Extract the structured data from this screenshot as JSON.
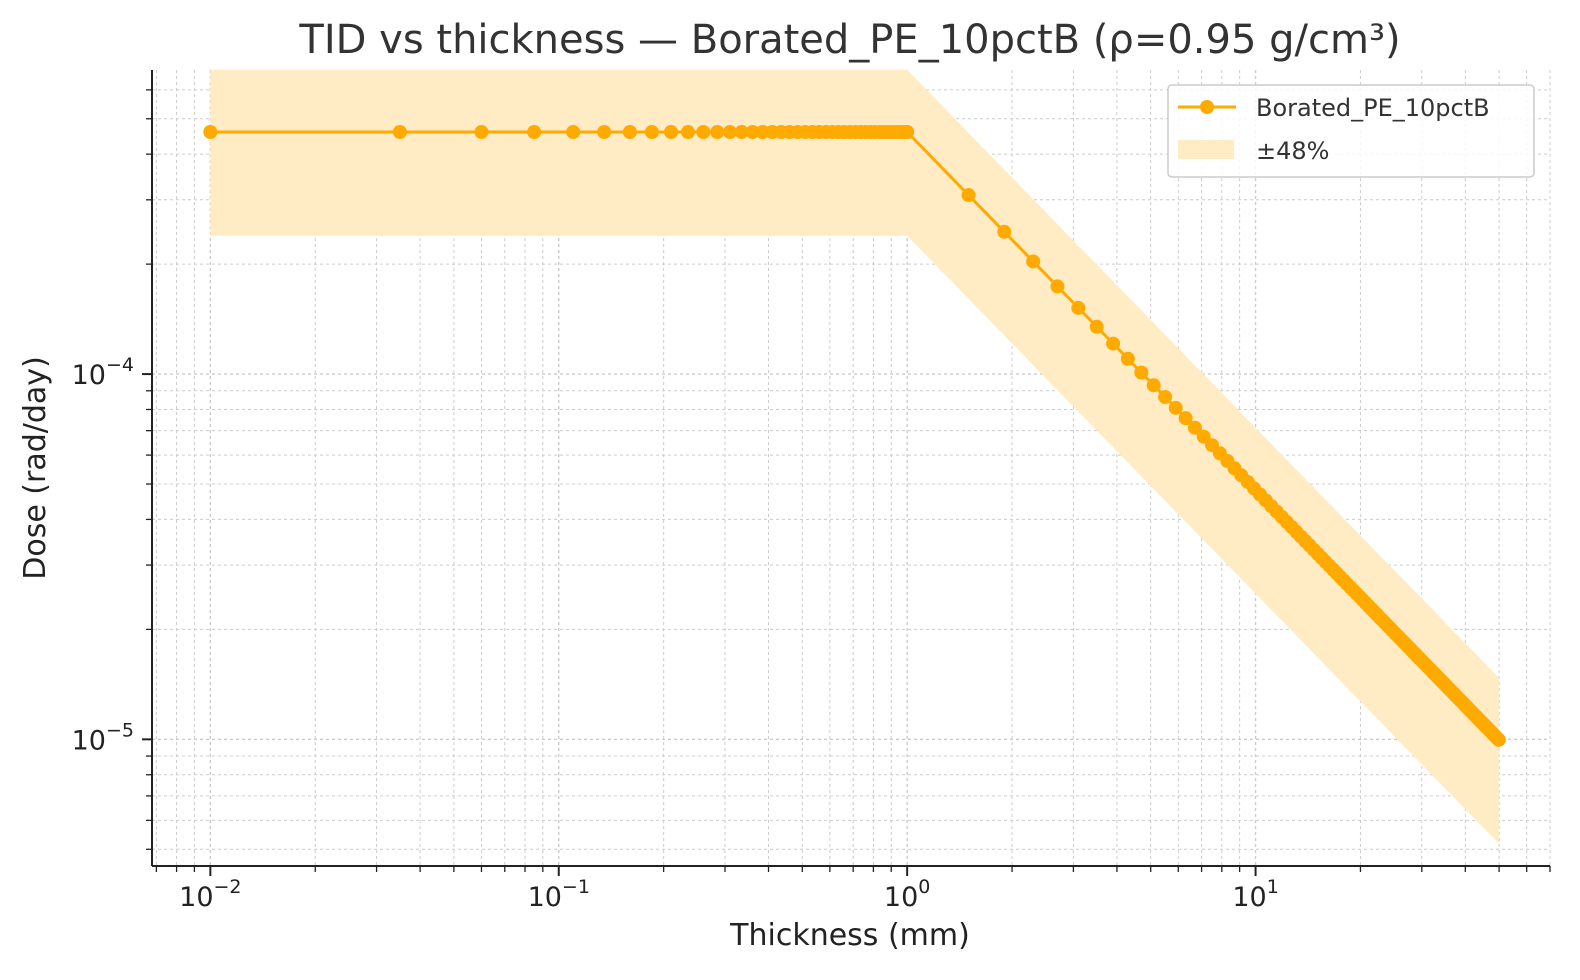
{
  "chart_data": {
    "type": "line",
    "title": "TID vs thickness — Borated_PE_10pctB (ρ=0.95 g/cm³)",
    "xlabel": "Thickness (mm)",
    "ylabel": "Dose (rad/day)",
    "x_scale": "log",
    "y_scale": "log",
    "xlim": [
      0.0068,
      70
    ],
    "ylim": [
      4.5e-06,
      0.00068
    ],
    "x_ticks": [
      {
        "value": 0.01,
        "base": "10",
        "exp": "−2"
      },
      {
        "value": 0.1,
        "base": "10",
        "exp": "−1"
      },
      {
        "value": 1,
        "base": "10",
        "exp": "0"
      },
      {
        "value": 10,
        "base": "10",
        "exp": "1"
      }
    ],
    "y_ticks": [
      {
        "value": 0.0001,
        "base": "10",
        "exp": "−4"
      },
      {
        "value": 1e-05,
        "base": "10",
        "exp": "−5"
      }
    ],
    "grid": true,
    "legend_position": "top-right",
    "colors": {
      "line": "#FFAA00",
      "band": "#FFECC4",
      "grid": "#cccccc",
      "axis": "#222222"
    },
    "series": [
      {
        "name": "Borated_PE_10pctB",
        "x_flat": [
          0.01,
          0.035,
          0.06,
          0.085,
          0.11,
          0.135,
          0.16,
          0.185,
          0.21,
          0.235,
          0.26,
          0.285,
          0.31,
          0.335,
          0.36,
          0.385,
          0.41,
          0.435,
          0.46,
          0.485,
          0.51,
          0.535,
          0.56,
          0.585,
          0.61,
          0.635,
          0.66,
          0.685,
          0.71,
          0.735,
          0.76,
          0.785,
          0.81,
          0.835,
          0.86,
          0.885,
          0.91,
          0.935,
          0.96,
          0.985,
          1.0
        ],
        "flat_dose": 0.00046,
        "x_decay_start": 1.5,
        "x_decay_step": 0.4,
        "x_decay_end": 49.9,
        "decay_law": "dose = 0.00046 * x^-0.98 for x > 1"
      }
    ],
    "band": {
      "label": "±48%",
      "fraction": 0.48
    }
  }
}
